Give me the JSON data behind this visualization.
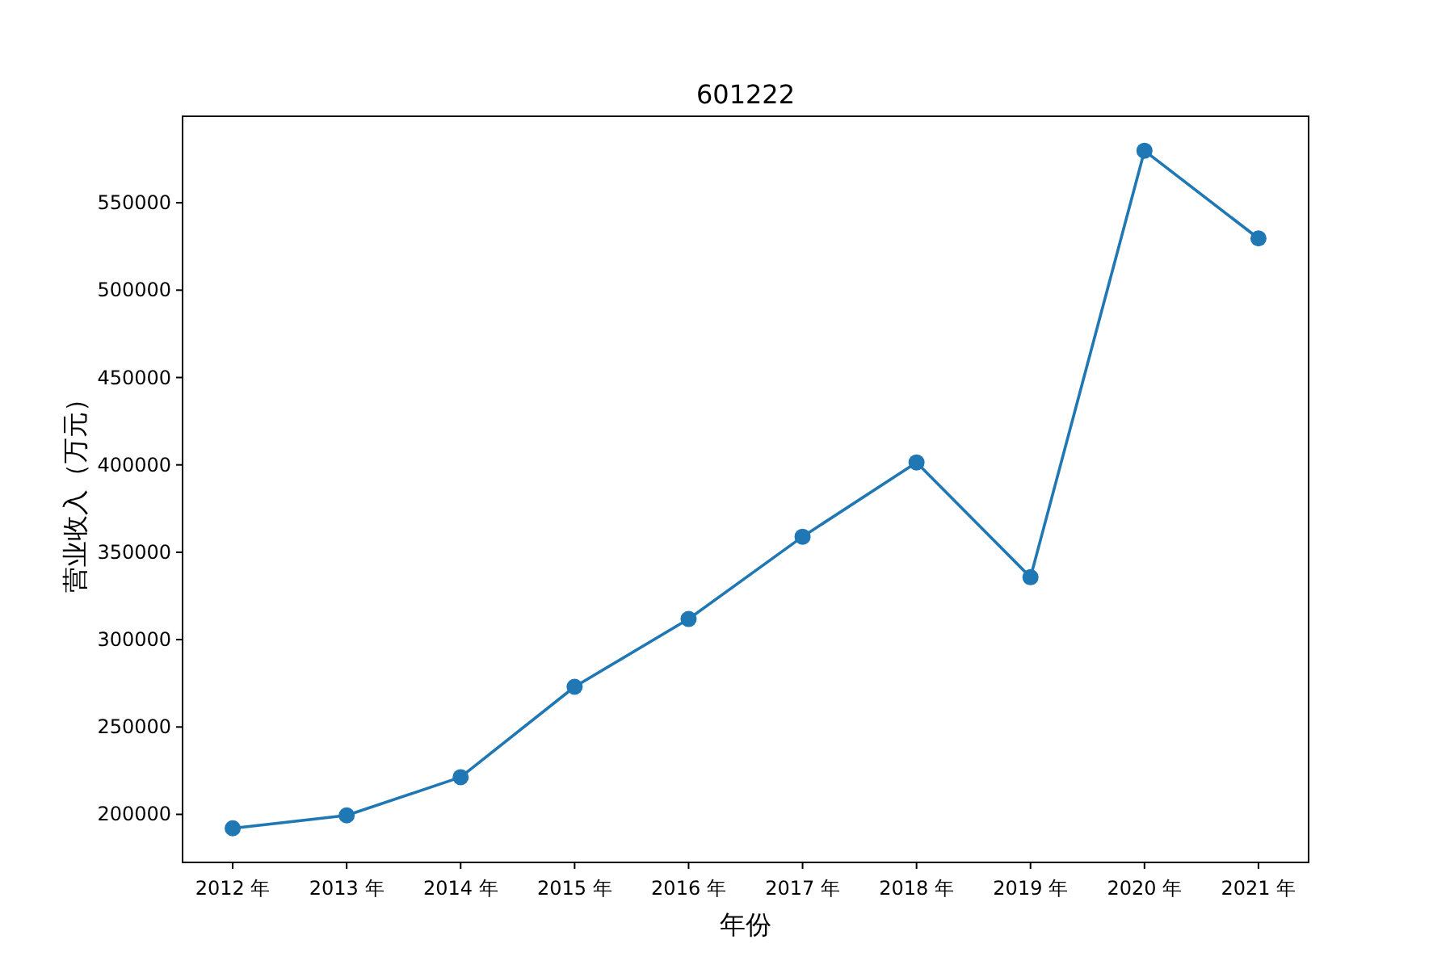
{
  "chart_data": {
    "type": "line",
    "title": "601222",
    "xlabel": "年份",
    "ylabel": "营业收入（万元）",
    "categories": [
      "2012 年",
      "2013 年",
      "2014 年",
      "2015 年",
      "2016 年",
      "2017 年",
      "2018 年",
      "2019 年",
      "2020 年",
      "2021 年"
    ],
    "series": [
      {
        "color": "#1f77b4",
        "values": [
          192000,
          199400,
          221300,
          273000,
          311800,
          358900,
          401400,
          335700,
          579800,
          529600
        ]
      }
    ],
    "ylim": [
      172500,
      599500
    ],
    "yticks": [
      200000,
      250000,
      300000,
      350000,
      400000,
      450000,
      500000,
      550000
    ],
    "marker": "circle",
    "line_style": "solid"
  }
}
